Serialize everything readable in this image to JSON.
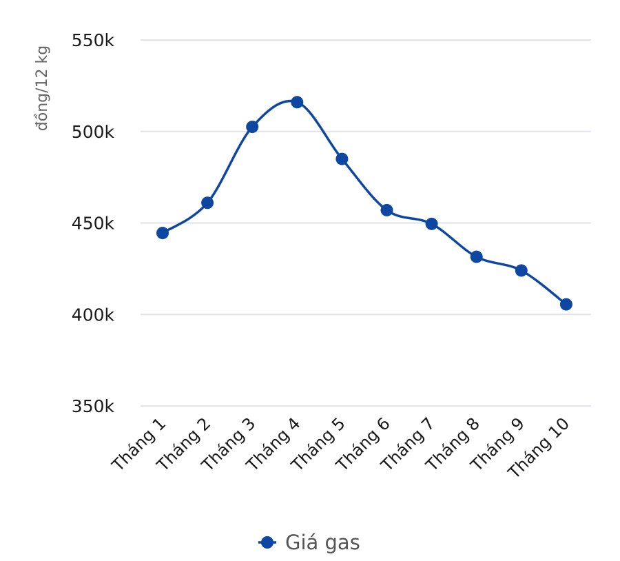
{
  "chart_data": {
    "type": "line",
    "title": "",
    "xlabel": "",
    "ylabel": "đồng/12 kg",
    "categories": [
      "Tháng 1",
      "Tháng 2",
      "Tháng 3",
      "Tháng 4",
      "Tháng 5",
      "Tháng 6",
      "Tháng 7",
      "Tháng 8",
      "Tháng 9",
      "Tháng 10"
    ],
    "series": [
      {
        "name": "Giá gas",
        "color": "#0d47a1",
        "values": [
          444500,
          461000,
          502500,
          516000,
          485000,
          457000,
          449500,
          431500,
          424000,
          405500
        ]
      }
    ],
    "ylim": [
      350000,
      550000
    ],
    "yticks": [
      350000,
      400000,
      450000,
      500000,
      550000
    ],
    "ytick_labels": [
      "350k",
      "400k",
      "450k",
      "500k",
      "550k"
    ],
    "grid": true,
    "legend_position": "bottom",
    "smooth": true
  }
}
